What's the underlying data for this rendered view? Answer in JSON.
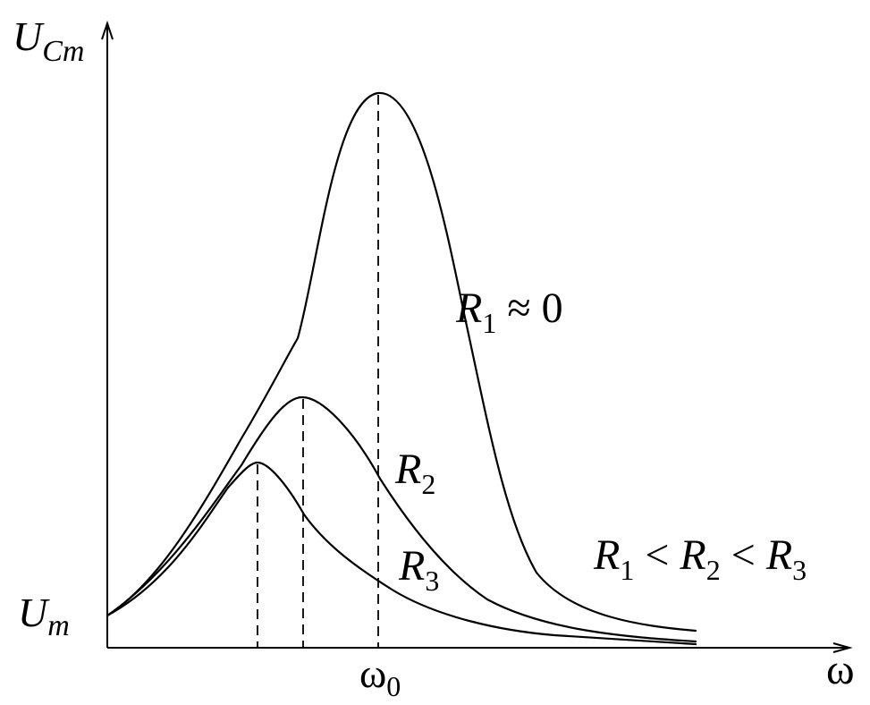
{
  "axes": {
    "y_label_main": "U",
    "y_label_sub": "Cm",
    "x_label": "ω",
    "origin_label_main": "U",
    "origin_label_sub": "m",
    "tick_label_main": "ω",
    "tick_label_sub": "0"
  },
  "curves": [
    {
      "label_main": "R",
      "label_sub": "1",
      "label_tail": " ≈ 0"
    },
    {
      "label_main": "R",
      "label_sub": "2",
      "label_tail": ""
    },
    {
      "label_main": "R",
      "label_sub": "3",
      "label_tail": ""
    }
  ],
  "relation": {
    "r1": "R",
    "r1_sub": "1",
    "lt1": " < ",
    "r2": "R",
    "r2_sub": "2",
    "lt2": " < ",
    "r3": "R",
    "r3_sub": "3"
  }
}
